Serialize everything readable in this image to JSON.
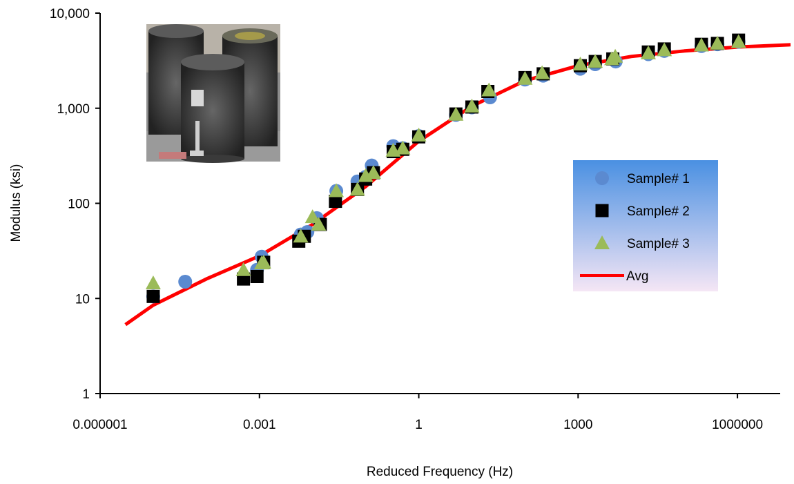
{
  "chart_data": {
    "type": "scatter",
    "title": "",
    "xlabel": "Reduced Frequency (Hz)",
    "ylabel": "Modulus (ksi)",
    "x_scale": "log",
    "y_scale": "log",
    "xlim": [
      1e-06,
      10000000
    ],
    "ylim": [
      1,
      10000
    ],
    "x_ticks": [
      {
        "value": 1e-06,
        "label": "0.000001"
      },
      {
        "value": 0.001,
        "label": "0.001"
      },
      {
        "value": 1,
        "label": "1"
      },
      {
        "value": 1000,
        "label": "1000"
      },
      {
        "value": 1000000,
        "label": "1000000"
      }
    ],
    "y_ticks": [
      {
        "value": 1,
        "label": "1"
      },
      {
        "value": 10,
        "label": "10"
      },
      {
        "value": 100,
        "label": "100"
      },
      {
        "value": 1000,
        "label": "1,000"
      },
      {
        "value": 10000,
        "label": "10,000"
      }
    ],
    "grid": false,
    "legend_position": "right",
    "legend_gradient": [
      "#4a90e2",
      "#f5e6f5"
    ],
    "series": [
      {
        "name": "Sample# 1",
        "marker": "circle",
        "color": "#5b8ad0",
        "points": [
          [
            1e-05,
            10.5
          ],
          [
            4e-05,
            15
          ],
          [
            0.0009,
            20
          ],
          [
            0.0011,
            27.5
          ],
          [
            0.006,
            47
          ],
          [
            0.008,
            50
          ],
          [
            0.012,
            70
          ],
          [
            0.028,
            135
          ],
          [
            0.07,
            170
          ],
          [
            0.1,
            190
          ],
          [
            0.13,
            250
          ],
          [
            0.33,
            400
          ],
          [
            0.5,
            380
          ],
          [
            1,
            510
          ],
          [
            5,
            850
          ],
          [
            10,
            1020
          ],
          [
            22,
            1300
          ],
          [
            100,
            2000
          ],
          [
            220,
            2200
          ],
          [
            1100,
            2600
          ],
          [
            2100,
            2900
          ],
          [
            5100,
            3100
          ],
          [
            21000,
            3700
          ],
          [
            42000,
            4000
          ],
          [
            210000,
            4500
          ],
          [
            420000,
            4700
          ],
          [
            1050000,
            5000
          ]
        ]
      },
      {
        "name": "Sample# 2",
        "marker": "square",
        "color": "#000000",
        "points": [
          [
            1e-05,
            10.5
          ],
          [
            0.0005,
            16
          ],
          [
            0.0009,
            17
          ],
          [
            0.0012,
            24
          ],
          [
            0.0055,
            40
          ],
          [
            0.007,
            45
          ],
          [
            0.014,
            60
          ],
          [
            0.027,
            105
          ],
          [
            0.07,
            140
          ],
          [
            0.1,
            180
          ],
          [
            0.14,
            210
          ],
          [
            0.33,
            350
          ],
          [
            0.5,
            370
          ],
          [
            1,
            500
          ],
          [
            5,
            870
          ],
          [
            10,
            1030
          ],
          [
            20,
            1500
          ],
          [
            100,
            2100
          ],
          [
            220,
            2300
          ],
          [
            1100,
            2800
          ],
          [
            2100,
            3100
          ],
          [
            4500,
            3300
          ],
          [
            21000,
            3900
          ],
          [
            42000,
            4200
          ],
          [
            210000,
            4700
          ],
          [
            420000,
            4800
          ],
          [
            1050000,
            5200
          ]
        ]
      },
      {
        "name": "Sample# 3",
        "marker": "triangle",
        "color": "#9bbb59",
        "points": [
          [
            1e-05,
            14.5
          ],
          [
            0.0005,
            20
          ],
          [
            0.0011,
            23.5
          ],
          [
            0.0012,
            24
          ],
          [
            0.006,
            45
          ],
          [
            0.01,
            72
          ],
          [
            0.013,
            60
          ],
          [
            0.028,
            135
          ],
          [
            0.07,
            140
          ],
          [
            0.1,
            195
          ],
          [
            0.14,
            210
          ],
          [
            0.33,
            360
          ],
          [
            0.5,
            380
          ],
          [
            1,
            520
          ],
          [
            5,
            860
          ],
          [
            10,
            1050
          ],
          [
            21,
            1550
          ],
          [
            100,
            2050
          ],
          [
            210,
            2350
          ],
          [
            1100,
            2900
          ],
          [
            2100,
            3100
          ],
          [
            4300,
            3300
          ],
          [
            5000,
            3500
          ],
          [
            21000,
            3800
          ],
          [
            42000,
            4100
          ],
          [
            210000,
            4600
          ],
          [
            420000,
            4800
          ],
          [
            1050000,
            5000
          ]
        ]
      },
      {
        "name": "Avg",
        "marker": "line",
        "color": "#ff0000",
        "points": [
          [
            3e-06,
            5.3
          ],
          [
            1e-05,
            8.5
          ],
          [
            0.0001,
            16
          ],
          [
            0.001,
            28
          ],
          [
            0.01,
            60
          ],
          [
            0.1,
            150
          ],
          [
            1,
            450
          ],
          [
            10,
            1050
          ],
          [
            100,
            1950
          ],
          [
            1000,
            2800
          ],
          [
            10000,
            3500
          ],
          [
            100000,
            4000
          ],
          [
            1000000,
            4400
          ],
          [
            10000000,
            4650
          ]
        ]
      }
    ],
    "inset_image": "photo of cylindrical asphalt specimens"
  }
}
